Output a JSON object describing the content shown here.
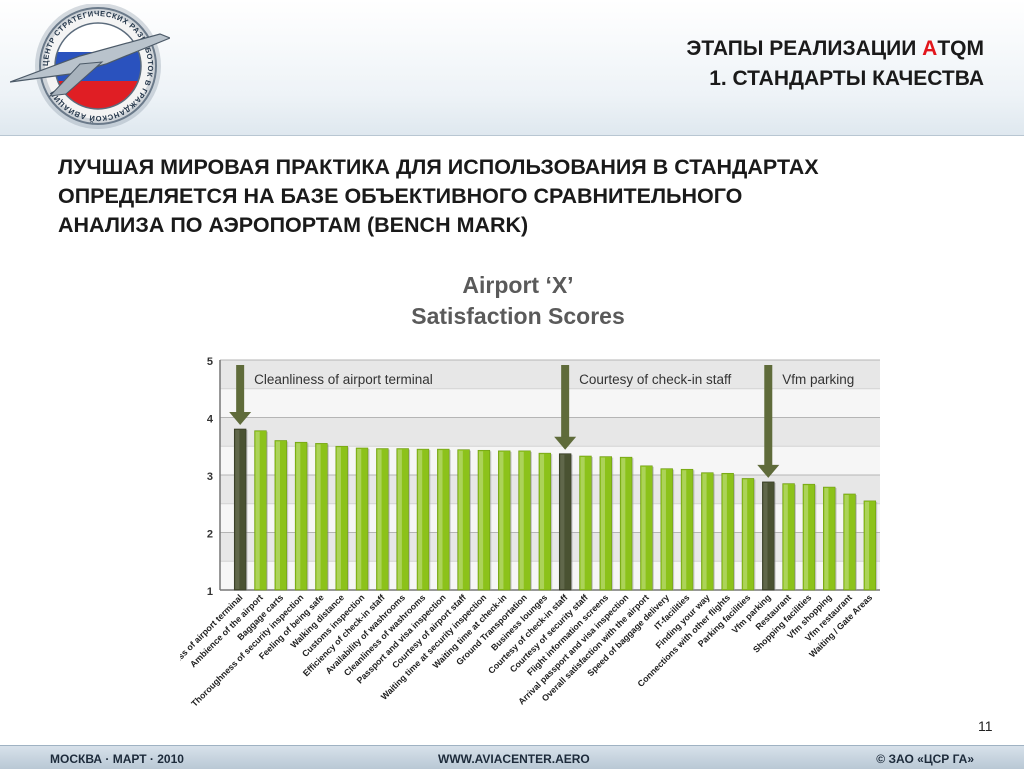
{
  "header": {
    "title_line1_before": "ЭТАПЫ РЕАЛИЗАЦИИ ",
    "title_line1_accent": "А",
    "title_line1_after": "TQM",
    "title_line2": "1. СТАНДАРТЫ КАЧЕСТВА",
    "accent_color": "#e2161c",
    "logo": {
      "icon": "aircraft-emblem-icon",
      "ring_text": "ЦЕНТР СТРАТЕГИЧЕСКИХ РАЗРАБОТОК В ГРАЖДАНСКОЙ АВИАЦИИ"
    }
  },
  "subtitle": {
    "line1": "ЛУЧШАЯ МИРОВАЯ ПРАКТИКА ДЛЯ ИСПОЛЬЗОВАНИЯ В СТАНДАРТАХ",
    "line2": "ОПРЕДЕЛЯЕТСЯ НА БАЗЕ ОБЪЕКТИВНОГО СРАВНИТЕЛЬНОГО",
    "line3": "АНАЛИЗА ПО АЭРОПОРТАМ (BENCH MARK)"
  },
  "chart_data": {
    "type": "bar",
    "title_line1": "Airport ‘X’",
    "title_line2": "Satisfaction Scores",
    "ylim": [
      1,
      5
    ],
    "y_ticks": [
      "1",
      "2",
      "3",
      "4",
      "5"
    ],
    "grid": true,
    "categories": [
      "Cleanliness of airport terminal",
      "Ambience of the airport",
      "Baggage carts",
      "Thoroughness of security inspection",
      "Feeling of being safe",
      "Walking distance",
      "Customs inspection",
      "Efficiency of check-in staff",
      "Availability of washrooms",
      "Cleanliness of washrooms",
      "Passport and visa inspection",
      "Courtesy of airport staff",
      "Waiting time at security inspection",
      "Waiting time at check-in",
      "Ground Transportation",
      "Business lounges",
      "Courtesy of check-in staff",
      "Courtesy of security staff",
      "Flight information screens",
      "Arrival passport and visa inspection",
      "Overall satisfaction with the airport",
      "Speed of baggage delivery",
      "IT-facilities",
      "Finding your way",
      "Connections with other flights",
      "Parking facilities",
      "Vfm parking",
      "Restaurant",
      "Shopping facilities",
      "Vfm shopping",
      "Vfm restaurant",
      "Waiting / Gate Areas"
    ],
    "values": [
      3.8,
      3.77,
      3.6,
      3.57,
      3.55,
      3.5,
      3.47,
      3.46,
      3.46,
      3.45,
      3.45,
      3.44,
      3.43,
      3.42,
      3.42,
      3.38,
      3.37,
      3.33,
      3.32,
      3.31,
      3.16,
      3.11,
      3.1,
      3.04,
      3.03,
      2.94,
      2.88,
      2.85,
      2.84,
      2.79,
      2.67,
      2.55
    ],
    "highlighted": [
      "Cleanliness of airport terminal",
      "Courtesy of check-in staff",
      "Vfm parking"
    ],
    "annotations": [
      {
        "text": "Cleanliness of airport terminal",
        "target": "Cleanliness of airport terminal"
      },
      {
        "text": "Courtesy of check-in staff",
        "target": "Courtesy of check-in staff"
      },
      {
        "text": "Vfm parking",
        "target": "Vfm parking"
      }
    ],
    "colors": {
      "bar": "#8cc21a",
      "bar_highlight": "#4a5232",
      "arrow": "#5f6b3a",
      "band_light": "#f6f6f6",
      "band_dark": "#e7e7e7"
    }
  },
  "page": {
    "number": "11"
  },
  "footer": {
    "left": "МОСКВА  ·  МАРТ  ·  2010",
    "center": "WWW.AVIACENTER.AERO",
    "right": "© ЗАО «ЦСР ГА»"
  }
}
